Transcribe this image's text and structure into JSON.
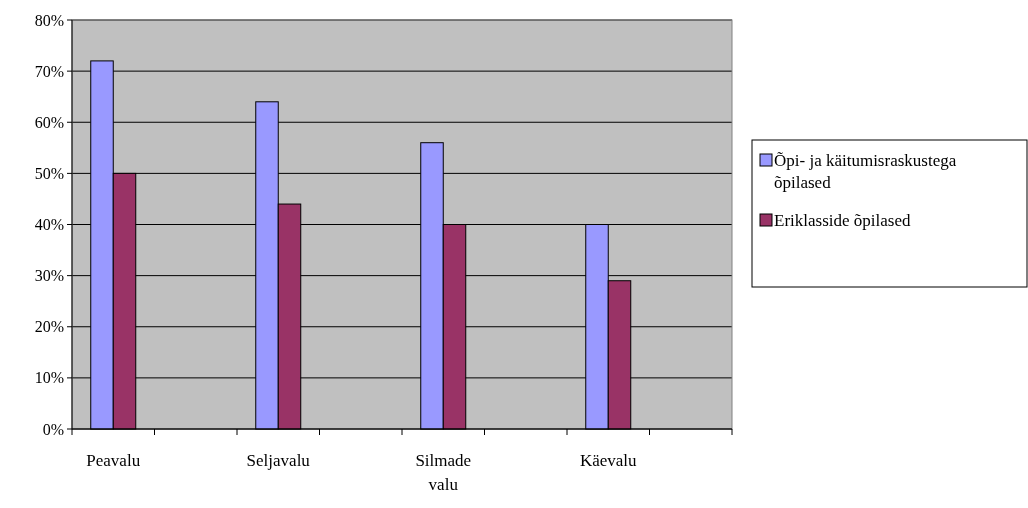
{
  "chart_data": {
    "type": "bar",
    "categories": [
      "Peavalu",
      null,
      "Seljavalu",
      null,
      "Silmade valu",
      null,
      "Käevalu",
      null
    ],
    "series": [
      {
        "name": "Õpi- ja käitumisraskustega õpilased",
        "color": "#9999ff",
        "values": [
          72,
          null,
          64,
          null,
          56,
          null,
          40,
          null
        ]
      },
      {
        "name": "Eriklasside õpilased",
        "color": "#993366",
        "values": [
          50,
          null,
          44,
          null,
          40,
          null,
          29,
          null
        ]
      }
    ],
    "ylim": [
      0,
      80
    ],
    "yticks": [
      {
        "value": 0,
        "label": "0%"
      },
      {
        "value": 10,
        "label": "10%"
      },
      {
        "value": 20,
        "label": "20%"
      },
      {
        "value": 30,
        "label": "30%"
      },
      {
        "value": 40,
        "label": "40%"
      },
      {
        "value": 50,
        "label": "50%"
      },
      {
        "value": 60,
        "label": "60%"
      },
      {
        "value": 70,
        "label": "70%"
      },
      {
        "value": 80,
        "label": "80%"
      }
    ],
    "grid": "y",
    "legend": "right"
  }
}
